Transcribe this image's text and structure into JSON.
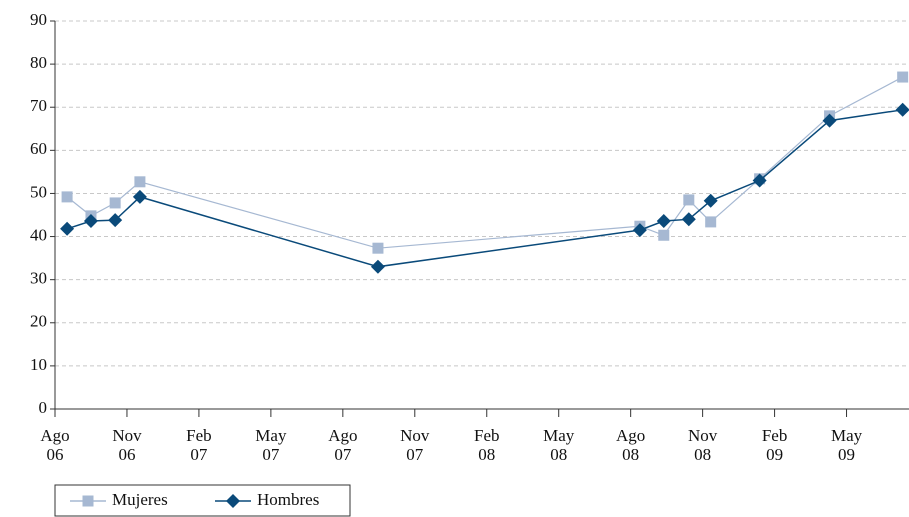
{
  "chart_data": {
    "type": "line",
    "series": [
      {
        "name": "Mujeres",
        "color": "#a6b8d2",
        "marker": "square",
        "x": [
          2006.625,
          2006.708,
          2006.792,
          2006.878,
          2007.705,
          2008.615,
          2008.698,
          2008.785,
          2008.861,
          2009.031,
          2009.274,
          2009.528
        ],
        "values": [
          49.2,
          44.8,
          47.8,
          52.7,
          37.3,
          42.4,
          40.3,
          48.5,
          43.4,
          53.4,
          68,
          77
        ]
      },
      {
        "name": "Hombres",
        "color": "#0a4a7a",
        "marker": "diamond",
        "x": [
          2006.625,
          2006.708,
          2006.792,
          2006.878,
          2007.705,
          2008.615,
          2008.698,
          2008.785,
          2008.861,
          2009.031,
          2009.274,
          2009.528
        ],
        "values": [
          41.8,
          43.6,
          43.8,
          49.2,
          33,
          41.5,
          43.6,
          44,
          48.3,
          53,
          66.9,
          69.4
        ]
      }
    ],
    "xlim": [
      2006.583,
      2009.55
    ],
    "xticks": [
      {
        "value": 2006.583,
        "label": "Ago 06"
      },
      {
        "value": 2006.833,
        "label": "Nov 06"
      },
      {
        "value": 2007.083,
        "label": "Feb 07"
      },
      {
        "value": 2007.333,
        "label": "May 07"
      },
      {
        "value": 2007.583,
        "label": "Ago 07"
      },
      {
        "value": 2007.833,
        "label": "Nov 07"
      },
      {
        "value": 2008.083,
        "label": "Feb 08"
      },
      {
        "value": 2008.333,
        "label": "May 08"
      },
      {
        "value": 2008.583,
        "label": "Ago 08"
      },
      {
        "value": 2008.833,
        "label": "Nov 08"
      },
      {
        "value": 2009.083,
        "label": "Feb 09"
      },
      {
        "value": 2009.333,
        "label": "May 09"
      }
    ],
    "ylim": [
      0,
      90
    ],
    "yticks": [
      0,
      10,
      20,
      30,
      40,
      50,
      60,
      70,
      80,
      90
    ],
    "grid": true,
    "legend": "bottom-left"
  }
}
